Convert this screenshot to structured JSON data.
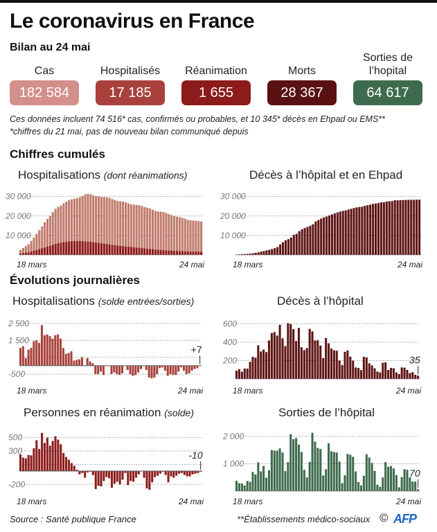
{
  "header": {
    "title": "Le coronavirus en France",
    "subtitle": "Bilan au 24 mai"
  },
  "kpis": [
    {
      "label": "Cas",
      "value": "182 584",
      "color": "#d48f8b"
    },
    {
      "label": "Hospitalisés",
      "value": "17 185",
      "color": "#a8403b"
    },
    {
      "label": "Réanimation",
      "value": "1 655",
      "color": "#8c1b1b"
    },
    {
      "label": "Morts",
      "value": "28 367",
      "color": "#5a1111"
    },
    {
      "label": "Sorties de l’hopital",
      "value": "64 617",
      "color": "#3e6b4d"
    }
  ],
  "notes": {
    "line1": "Ces données incluent 74 516* cas, confirmés ou probables, et 10 345* décès en Ehpad ou EMS**",
    "line2": "*chiffres du 21 mai, pas de nouveau bilan communiqué depuis"
  },
  "sections": {
    "cumul": "Chiffres cumulés",
    "daily": "Évolutions journalières"
  },
  "footer": {
    "source": "Source : Santé publique France",
    "footnote": "**Établissements médico-sociaux",
    "copyright": "©",
    "agency": "AFP"
  },
  "chart_data": [
    {
      "id": "hosp_cumul",
      "type": "bar",
      "title": "Hospitalisations",
      "subtitle": "(dont réanimations)",
      "x_start": "18 mars",
      "x_end": "24 mai",
      "yticks": [
        {
          "v": 10000,
          "l": "10 000"
        },
        {
          "v": 20000,
          "l": "20 000"
        },
        {
          "v": 30000,
          "l": "30 000"
        }
      ],
      "ylim": [
        0,
        32000
      ],
      "series": [
        {
          "name": "Hospitalisations",
          "color": "#bf7a6c",
          "values": [
            2600,
            3600,
            4500,
            5500,
            7200,
            9000,
            10800,
            12700,
            14600,
            16700,
            18500,
            20000,
            22000,
            23700,
            24600,
            25300,
            26500,
            27300,
            28100,
            28500,
            28800,
            29100,
            29600,
            30300,
            31100,
            31300,
            31200,
            30600,
            30100,
            30000,
            29800,
            29700,
            29600,
            29300,
            28700,
            28200,
            27700,
            27500,
            27400,
            27000,
            26500,
            26000,
            25800,
            25700,
            25500,
            25100,
            24600,
            24200,
            23900,
            23200,
            22600,
            22300,
            22200,
            22000,
            21600,
            21000,
            20400,
            19900,
            19600,
            19400,
            19000,
            18600,
            18000,
            17800,
            17600,
            17600,
            17400,
            17185
          ]
        },
        {
          "name": "Réanimations",
          "color": "#8c1b1b",
          "values": [
            700,
            900,
            1100,
            1300,
            1700,
            2100,
            2500,
            3000,
            3400,
            3800,
            4300,
            4600,
            5100,
            5600,
            6000,
            6200,
            6500,
            6700,
            6900,
            7000,
            7100,
            7100,
            7100,
            7000,
            6900,
            6800,
            6700,
            6500,
            6300,
            6100,
            5900,
            5700,
            5600,
            5400,
            5200,
            5000,
            4800,
            4600,
            4500,
            4300,
            4200,
            4100,
            3900,
            3700,
            3600,
            3500,
            3300,
            3100,
            3000,
            2900,
            2700,
            2600,
            2500,
            2400,
            2300,
            2200,
            2200,
            2100,
            2000,
            1900,
            1900,
            1800,
            1800,
            1700,
            1700,
            1700,
            1700,
            1655
          ]
        }
      ]
    },
    {
      "id": "deces_cumul",
      "type": "bar",
      "title": "Décès à l’hôpital et en Ehpad",
      "x_start": "18 mars",
      "x_end": "24 mai",
      "yticks": [
        {
          "v": 10000,
          "l": "10 000"
        },
        {
          "v": 20000,
          "l": "20 000"
        },
        {
          "v": 30000,
          "l": "30 000"
        }
      ],
      "ylim": [
        0,
        32000
      ],
      "series": [
        {
          "name": "Décès",
          "color": "#5e1414",
          "values": [
            180,
            260,
            370,
            450,
            560,
            680,
            860,
            1100,
            1330,
            1700,
            1990,
            2310,
            2600,
            3020,
            3500,
            4030,
            5380,
            6500,
            7560,
            8070,
            8910,
            10320,
            10860,
            12200,
            13200,
            13830,
            14390,
            14970,
            15700,
            17150,
            17900,
            18680,
            19320,
            19720,
            20260,
            20780,
            21340,
            21850,
            22240,
            22610,
            22850,
            23290,
            23660,
            24090,
            24380,
            24590,
            24760,
            25200,
            25530,
            25800,
            26230,
            26380,
            26640,
            26990,
            27070,
            27420,
            27530,
            27630,
            28100,
            28020,
            28110,
            28210,
            28220,
            28280,
            28290,
            28330,
            28350,
            28367
          ]
        }
      ]
    },
    {
      "id": "hosp_daily",
      "type": "bar",
      "title": "Hospitalisations",
      "subtitle": "(solde entrées/sorties)",
      "x_start": "18 mars",
      "x_end": "24 mai",
      "yticks": [
        {
          "v": -500,
          "l": "-500"
        },
        {
          "v": 1500,
          "l": "1 500"
        },
        {
          "v": 2500,
          "l": "2 500"
        }
      ],
      "extra_gridlines": [
        500
      ],
      "ylim": [
        -700,
        2700
      ],
      "last_label": "+7",
      "series": [
        {
          "name": "Solde",
          "color": "#a8403b",
          "values": [
            1050,
            1150,
            450,
            950,
            1050,
            1450,
            1500,
            1350,
            2400,
            1800,
            1850,
            1750,
            1600,
            1800,
            1850,
            1600,
            1050,
            700,
            750,
            850,
            300,
            350,
            380,
            500,
            20,
            450,
            250,
            150,
            -500,
            -500,
            -350,
            -550,
            0,
            0,
            -500,
            -400,
            -500,
            -550,
            -450,
            0,
            -250,
            -500,
            -600,
            -550,
            -400,
            -200,
            0,
            -250,
            -700,
            -750,
            -700,
            -500,
            -150,
            -100,
            -300,
            -600,
            -500,
            -550,
            -550,
            -350,
            -100,
            -300,
            -500,
            -450,
            -300,
            -200,
            -150,
            7
          ]
        }
      ]
    },
    {
      "id": "deces_daily",
      "type": "bar",
      "title": "Décès à l’hôpital",
      "x_start": "18 mars",
      "x_end": "24 mai",
      "yticks": [
        {
          "v": 200,
          "l": "200"
        },
        {
          "v": 400,
          "l": "400"
        },
        {
          "v": 600,
          "l": "600"
        }
      ],
      "ylim": [
        0,
        640
      ],
      "last_label": "35",
      "series": [
        {
          "name": "Décès",
          "color": "#5e1414",
          "values": [
            90,
            105,
            78,
            112,
            112,
            186,
            240,
            231,
            365,
            299,
            319,
            292,
            418,
            499,
            509,
            471,
            588,
            441,
            357,
            605,
            597,
            541,
            412,
            554,
            345,
            313,
            335,
            544,
            516,
            418,
            420,
            362,
            227,
            445,
            387,
            330,
            311,
            306,
            200,
            150,
            295,
            310,
            242,
            198,
            125,
            119,
            96,
            240,
            234,
            170,
            147,
            115,
            80,
            70,
            176,
            180,
            98,
            120,
            116,
            71,
            53,
            125,
            122,
            98,
            63,
            74,
            45,
            35
          ]
        }
      ]
    },
    {
      "id": "rea_daily",
      "type": "bar",
      "title": "Personnes en réanimation",
      "subtitle": "(solde)",
      "x_start": "18 mars",
      "x_end": "24 mai",
      "yticks": [
        {
          "v": -200,
          "l": "-200"
        },
        {
          "v": 300,
          "l": "300"
        },
        {
          "v": 500,
          "l": "500"
        }
      ],
      "extra_gridlines": [
        100
      ],
      "ylim": [
        -280,
        580
      ],
      "last_label": "-10",
      "series": [
        {
          "name": "Solde",
          "color": "#8c1b1b",
          "values": [
            250,
            200,
            190,
            240,
            235,
            340,
            460,
            330,
            570,
            420,
            500,
            380,
            450,
            520,
            470,
            400,
            270,
            210,
            170,
            120,
            80,
            20,
            -50,
            -30,
            -100,
            -20,
            -10,
            -60,
            -270,
            -220,
            -230,
            -150,
            -90,
            -110,
            -250,
            -190,
            -160,
            -200,
            -130,
            -30,
            -210,
            -150,
            -160,
            -100,
            -50,
            0,
            -100,
            -260,
            -280,
            -170,
            -90,
            -70,
            -40,
            -10,
            -60,
            -170,
            -80,
            -100,
            -70,
            -40,
            -30,
            -60,
            -80,
            -80,
            -50,
            -40,
            -30,
            -10
          ]
        }
      ]
    },
    {
      "id": "sorties_daily",
      "type": "bar",
      "title": "Sorties de l’hôpital",
      "x_start": "18 mars",
      "x_end": "24 mai",
      "yticks": [
        {
          "v": 1000,
          "l": "1 000"
        },
        {
          "v": 2000,
          "l": "2 000"
        }
      ],
      "ylim": [
        0,
        2150
      ],
      "last_label": "70",
      "series": [
        {
          "name": "Sorties",
          "color": "#3e6b4d",
          "values": [
            380,
            290,
            280,
            210,
            370,
            340,
            700,
            610,
            1050,
            720,
            920,
            490,
            760,
            1500,
            1480,
            1480,
            1560,
            1410,
            730,
            1060,
            2080,
            1900,
            1940,
            1700,
            1430,
            780,
            500,
            1070,
            2130,
            1810,
            1580,
            1540,
            570,
            800,
            1750,
            1460,
            1430,
            1410,
            1080,
            290,
            580,
            1360,
            1330,
            1250,
            720,
            330,
            210,
            560,
            1350,
            1230,
            1030,
            740,
            230,
            160,
            500,
            1060,
            890,
            920,
            830,
            590,
            140,
            510,
            800,
            780,
            500,
            350,
            350,
            70
          ]
        }
      ]
    }
  ]
}
